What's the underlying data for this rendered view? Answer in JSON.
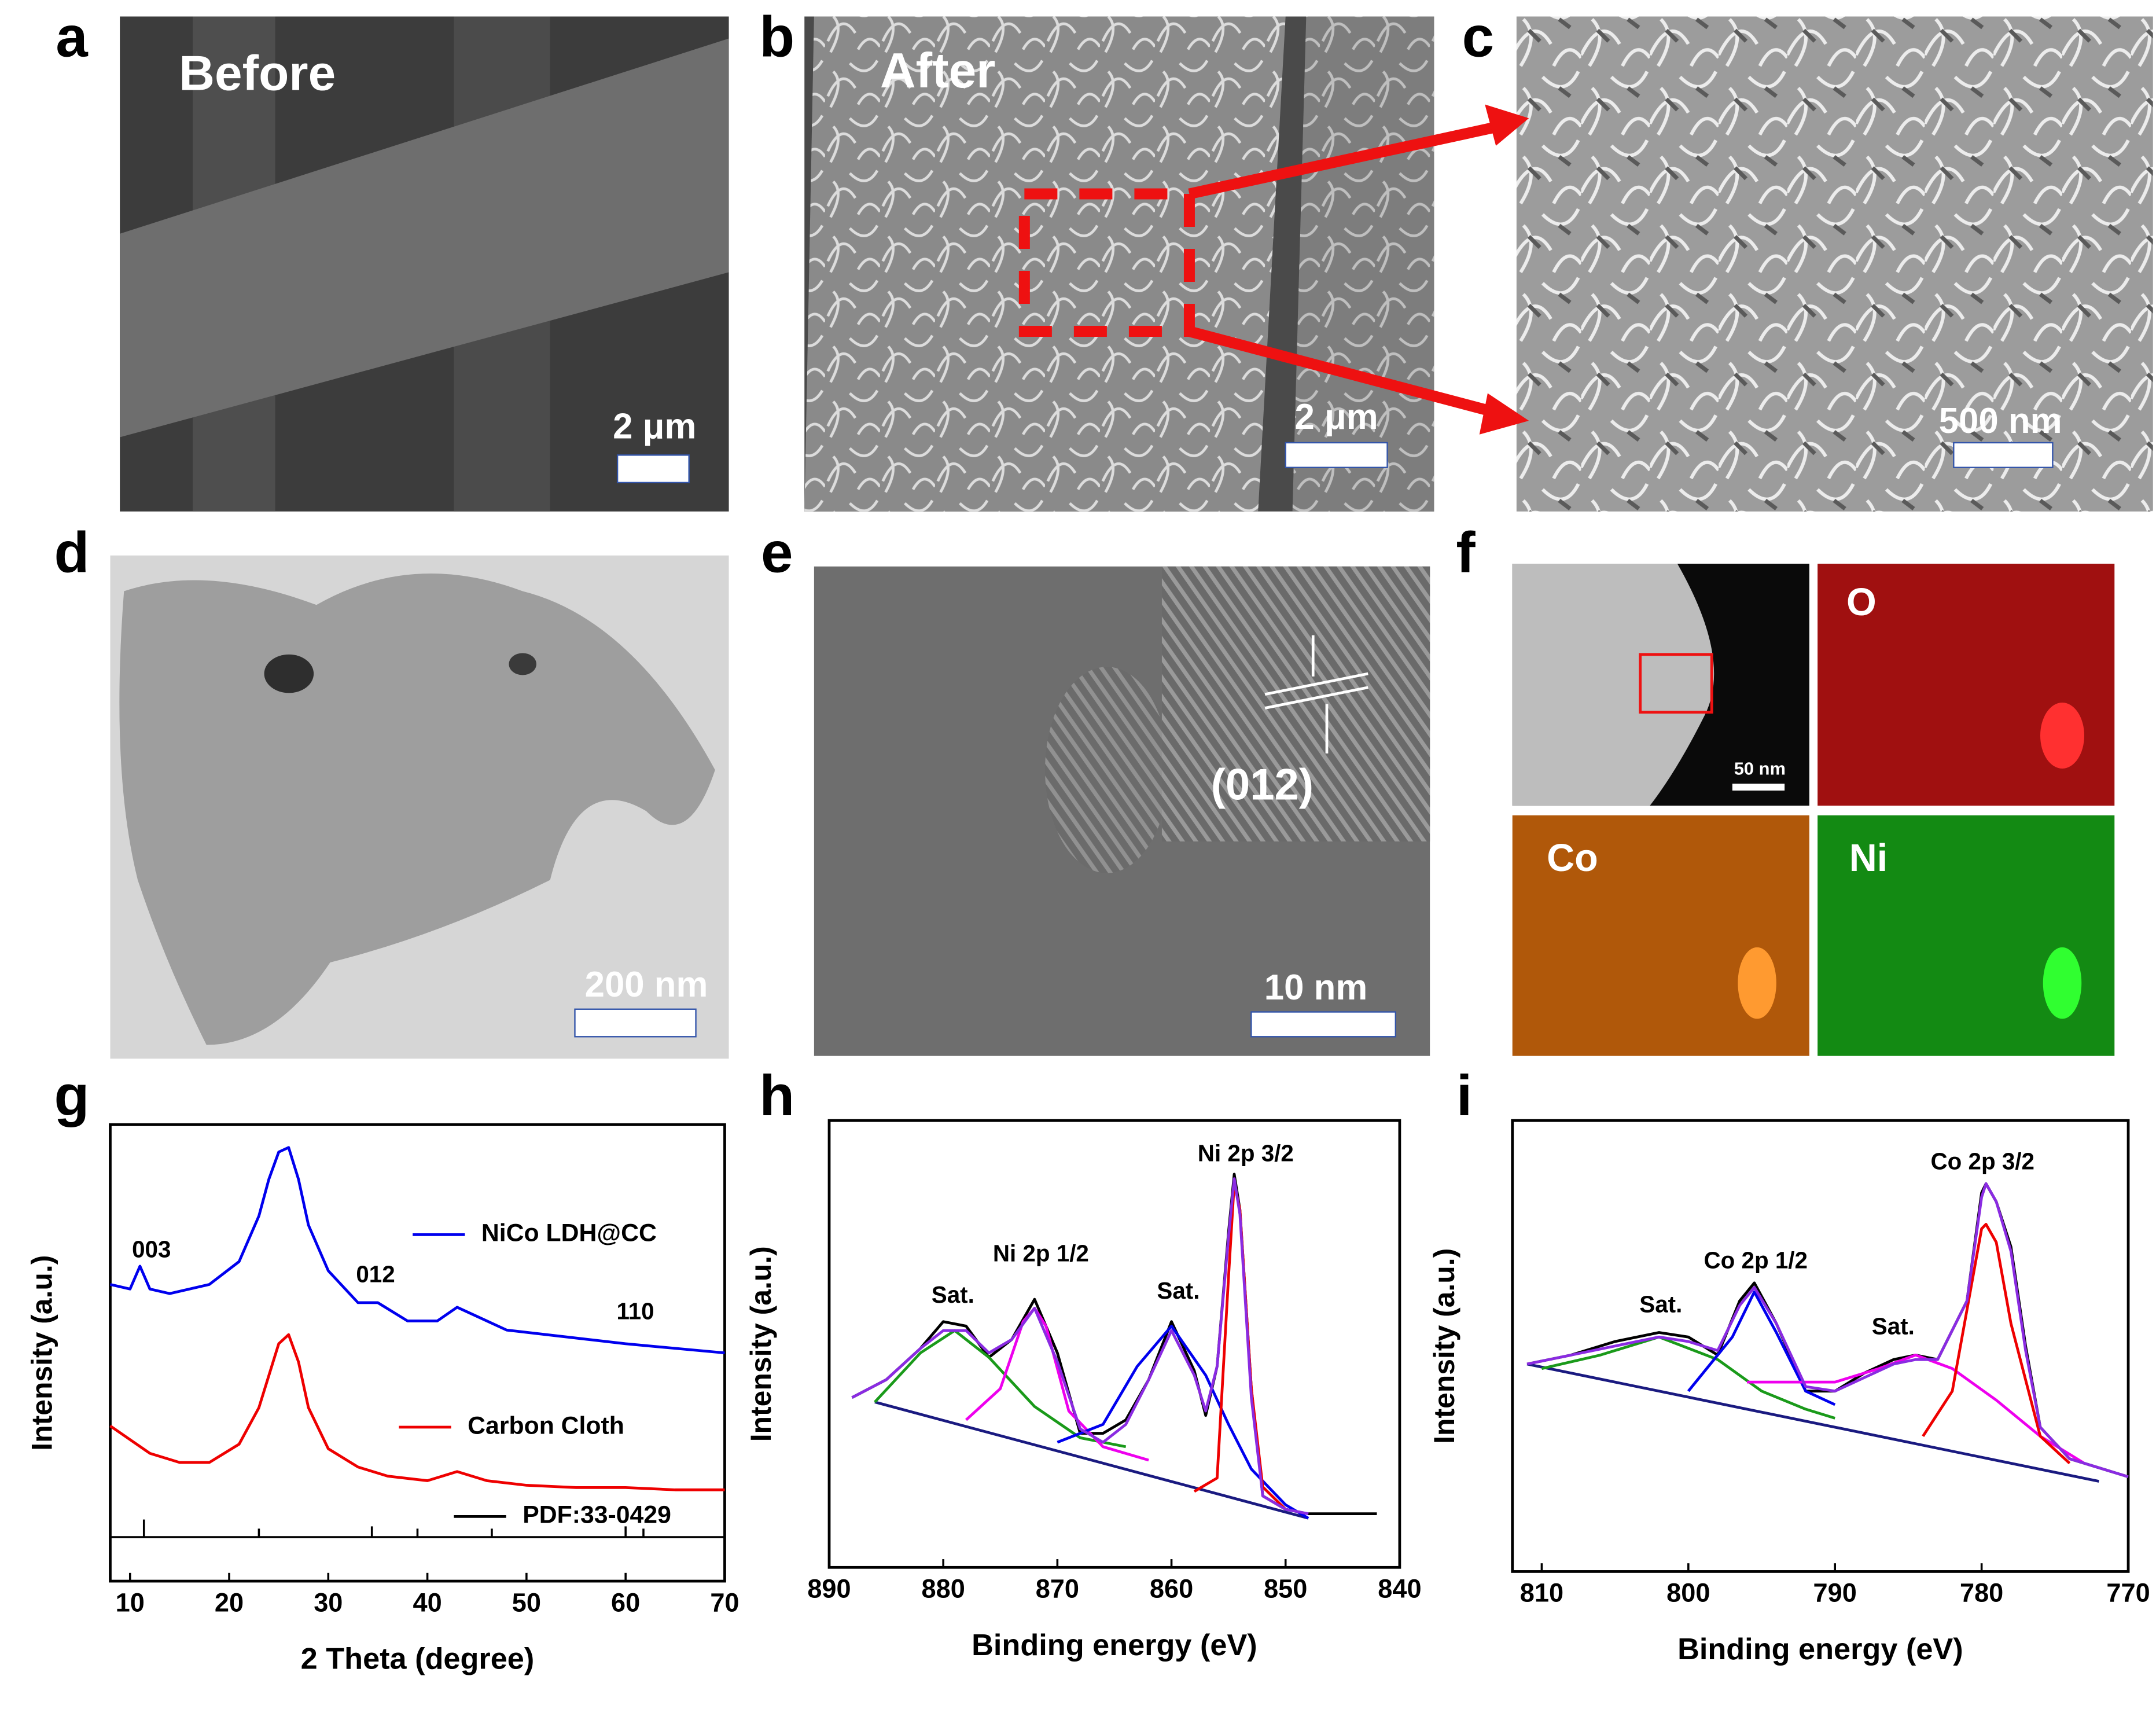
{
  "panels": [
    {
      "letter": "a",
      "label": "Before",
      "scale_bar": "2 μm"
    },
    {
      "letter": "b",
      "label": "After",
      "scale_bar": "2 μm"
    },
    {
      "letter": "c",
      "scale_bar": "500 nm"
    },
    {
      "letter": "d",
      "scale_bar": "200 nm"
    },
    {
      "letter": "e",
      "scale_bar": "10 nm",
      "annotation": "(012)"
    },
    {
      "letter": "f",
      "scale_bar": "50 nm",
      "maps": [
        "O",
        "Co",
        "Ni"
      ]
    }
  ],
  "chart_data": [
    {
      "type": "line",
      "label": "g",
      "xlabel": "2 Theta (degree)",
      "ylabel": "Intensity (a.u.)",
      "xlim": [
        8,
        70
      ],
      "xticks": [
        10,
        20,
        30,
        40,
        50,
        60,
        70
      ],
      "ylim": [
        0,
        100
      ],
      "annotations": [
        "003",
        "012",
        "110"
      ],
      "series": [
        {
          "name": "NiCo LDH@CC",
          "color": "#0000ee",
          "x": [
            8,
            10,
            11,
            12,
            14,
            18,
            21,
            23,
            24,
            25,
            26,
            27,
            28,
            30,
            33,
            35,
            38,
            41,
            43,
            45,
            48,
            52,
            56,
            60,
            65,
            70
          ],
          "values": [
            65,
            64,
            69,
            64,
            63,
            65,
            70,
            80,
            88,
            94,
            95,
            88,
            78,
            68,
            61,
            61,
            57,
            57,
            60,
            58,
            55,
            54,
            53,
            52,
            51,
            50
          ]
        },
        {
          "name": "Carbon Cloth",
          "color": "#ee0000",
          "x": [
            8,
            10,
            12,
            15,
            18,
            21,
            23,
            24,
            25,
            26,
            27,
            28,
            30,
            33,
            36,
            40,
            43,
            46,
            50,
            55,
            60,
            65,
            70
          ],
          "values": [
            34,
            31,
            28,
            26,
            26,
            30,
            38,
            45,
            52,
            54,
            48,
            38,
            29,
            25,
            23,
            22,
            24,
            22,
            21,
            20.5,
            20.5,
            20,
            20
          ]
        },
        {
          "name": "PDF:33-0429",
          "color": "#000000",
          "style": "stick",
          "x": [
            11.4,
            23,
            34.4,
            39,
            46.5,
            60,
            61.8
          ],
          "values": [
            13.5,
            11.5,
            12,
            11.5,
            11.5,
            12,
            11.5
          ]
        }
      ]
    },
    {
      "type": "line",
      "label": "h",
      "xlabel": "Binding energy (eV)",
      "ylabel": "Intensity (a.u.)",
      "xlim": [
        890,
        840
      ],
      "xticks": [
        890,
        880,
        870,
        860,
        850,
        840
      ],
      "ylim": [
        0,
        100
      ],
      "annotations": [
        "Sat.",
        "Ni 2p 1/2",
        "Sat.",
        "Ni 2p 3/2"
      ],
      "series": [
        {
          "color": "#000000",
          "x": [
            888,
            885,
            882,
            880,
            878,
            876,
            874,
            872,
            870,
            868,
            866,
            864,
            862,
            860,
            858,
            857,
            856,
            855,
            854.5,
            854,
            853,
            852,
            850,
            848,
            845,
            842
          ],
          "values": [
            38,
            42,
            49,
            55,
            54,
            47,
            51,
            60,
            48,
            30,
            30,
            33,
            42,
            55,
            44,
            34,
            45,
            75,
            88,
            80,
            40,
            16,
            13,
            12,
            12,
            12
          ]
        },
        {
          "color": "#1a1a80",
          "x": [
            886,
            848
          ],
          "values": [
            37,
            11
          ]
        },
        {
          "color": "#1a9a1a",
          "x": [
            886,
            882,
            879,
            876,
            872,
            868,
            864
          ],
          "values": [
            37,
            48,
            53,
            47,
            36,
            29,
            27
          ]
        },
        {
          "color": "#ee00ee",
          "x": [
            878,
            875,
            873,
            872,
            871,
            869,
            866,
            862
          ],
          "values": [
            33,
            40,
            55,
            58,
            54,
            35,
            27,
            24
          ]
        },
        {
          "color": "#0000ee",
          "x": [
            870,
            866,
            863,
            860,
            857,
            855,
            853,
            850,
            848
          ],
          "values": [
            28,
            32,
            45,
            54,
            43,
            32,
            22,
            14,
            11
          ]
        },
        {
          "color": "#ee0000",
          "x": [
            858,
            856,
            855,
            854.5,
            854,
            853,
            852,
            850
          ],
          "values": [
            17,
            20,
            65,
            86,
            80,
            40,
            18,
            13
          ]
        },
        {
          "color": "#8a2be2",
          "x": [
            888,
            885,
            882,
            880,
            878,
            876,
            874,
            872,
            870,
            868,
            866,
            864,
            862,
            860,
            858,
            857,
            856,
            855,
            854.5,
            854,
            853,
            852,
            850,
            848
          ],
          "values": [
            38,
            42,
            49,
            53,
            53,
            48,
            51,
            58,
            46,
            31,
            28,
            32,
            42,
            53,
            43,
            35,
            45,
            74,
            87,
            79,
            38,
            16,
            13,
            12
          ]
        }
      ]
    },
    {
      "type": "line",
      "label": "i",
      "xlabel": "Binding energy (eV)",
      "ylabel": "Intensity (a.u.)",
      "xlim": [
        812,
        770
      ],
      "xticks": [
        810,
        800,
        790,
        780,
        770
      ],
      "ylim": [
        0,
        100
      ],
      "annotations": [
        "Sat.",
        "Co 2p 1/2",
        "Sat.",
        "Co 2p 3/2"
      ],
      "series": [
        {
          "color": "#000000",
          "x": [
            811,
            808,
            805,
            802,
            800,
            798,
            796.5,
            795.5,
            794,
            792,
            790,
            788,
            786,
            784.5,
            783,
            781,
            780,
            779.7,
            779,
            778,
            777,
            776,
            774,
            772,
            770
          ],
          "values": [
            46,
            48,
            51,
            53,
            52,
            48,
            60,
            64,
            55,
            40,
            40,
            44,
            47,
            48,
            47,
            60,
            84,
            86,
            82,
            72,
            50,
            32,
            25,
            23,
            21
          ]
        },
        {
          "color": "#1a1a80",
          "x": [
            811,
            772
          ],
          "values": [
            46,
            20
          ]
        },
        {
          "color": "#1a9a1a",
          "x": [
            810,
            806,
            802,
            798,
            795,
            792,
            790
          ],
          "values": [
            45,
            48,
            52,
            47,
            40,
            36,
            34
          ]
        },
        {
          "color": "#0000ee",
          "x": [
            800,
            797,
            795.5,
            794,
            792,
            790
          ],
          "values": [
            40,
            52,
            62,
            53,
            40,
            37
          ]
        },
        {
          "color": "#ee00ee",
          "x": [
            796,
            790,
            787,
            784.5,
            782,
            779,
            776,
            773
          ],
          "values": [
            42,
            42,
            45,
            48,
            45,
            38,
            30,
            24
          ]
        },
        {
          "color": "#ee0000",
          "x": [
            784,
            782,
            780,
            779.7,
            779,
            778,
            776,
            774
          ],
          "values": [
            30,
            40,
            76,
            77,
            73,
            55,
            30,
            24
          ]
        },
        {
          "color": "#8a2be2",
          "x": [
            811,
            808,
            805,
            802,
            800,
            798,
            796.5,
            795.5,
            794,
            792,
            790,
            788,
            786,
            784.5,
            783,
            781,
            780,
            779.7,
            779,
            778,
            777,
            776,
            774,
            772,
            770
          ],
          "values": [
            46,
            48,
            50,
            52,
            51,
            49,
            59,
            63,
            55,
            41,
            40,
            43,
            46,
            47,
            47,
            60,
            83,
            86,
            82,
            71,
            49,
            32,
            25,
            23,
            21
          ]
        }
      ]
    }
  ]
}
